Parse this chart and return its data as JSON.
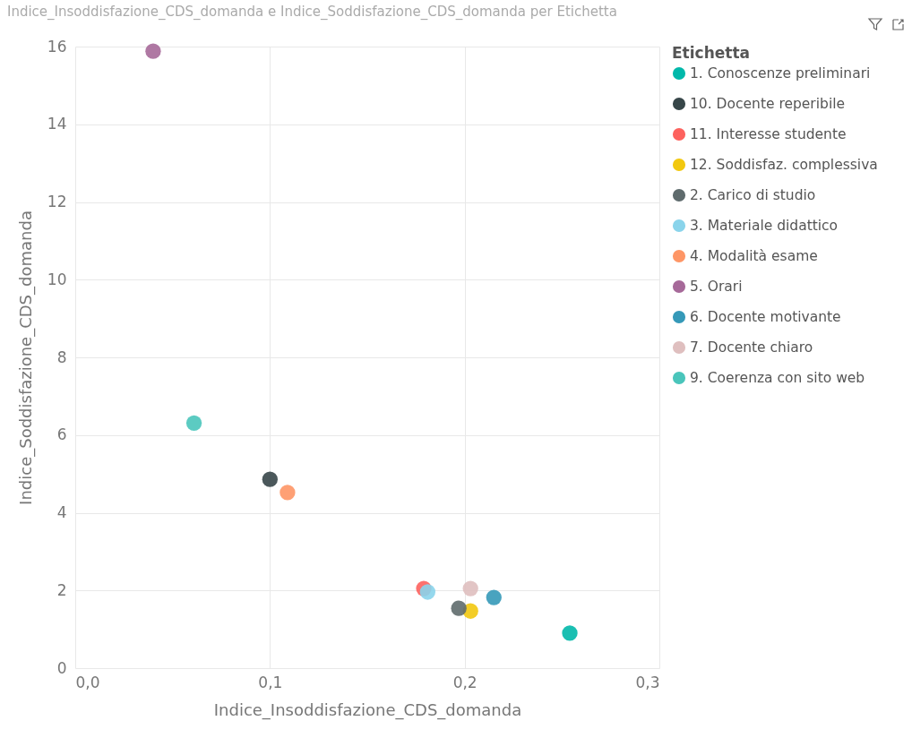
{
  "chart_data": {
    "type": "scatter",
    "title": "Indice_Insoddisfazione_CDS_domanda e Indice_Soddisfazione_CDS_domanda per Etichetta",
    "xlabel": "Indice_Insoddisfazione_CDS_domanda",
    "ylabel": "Indice_Soddisfazione_CDS_domanda",
    "legend_title": "Etichetta",
    "legend": "right",
    "grid": true,
    "marker": "circle",
    "xlim": [
      0,
      0.3
    ],
    "xticks": [
      {
        "value": 0,
        "label": "0,0"
      },
      {
        "value": 0.1,
        "label": "0,1"
      },
      {
        "value": 0.2,
        "label": "0,2"
      },
      {
        "value": 0.3,
        "label": "0,3"
      }
    ],
    "ylim": [
      0,
      16
    ],
    "yticks": [
      0,
      2,
      4,
      6,
      8,
      10,
      12,
      14,
      16
    ],
    "series": [
      {
        "name": "1. Conoscenze preliminari",
        "color": "#01b8aa",
        "x": [
          0.254
        ],
        "values": [
          0.9
        ]
      },
      {
        "name": "10. Docente reperibile",
        "color": "#374649",
        "x": [
          0.1
        ],
        "values": [
          4.86
        ]
      },
      {
        "name": "11. Interesse studente",
        "color": "#fd625e",
        "x": [
          0.179
        ],
        "values": [
          2.05
        ]
      },
      {
        "name": "12. Soddisfaz. complessiva",
        "color": "#f2c80f",
        "x": [
          0.203
        ],
        "values": [
          1.47
        ]
      },
      {
        "name": "2. Carico di studio",
        "color": "#5f6b6d",
        "x": [
          0.197
        ],
        "values": [
          1.54
        ]
      },
      {
        "name": "3. Materiale didattico",
        "color": "#8ad4eb",
        "x": [
          0.181
        ],
        "values": [
          1.96
        ]
      },
      {
        "name": "4. Modalità esame",
        "color": "#fe9666",
        "x": [
          0.109
        ],
        "values": [
          4.52
        ]
      },
      {
        "name": "5. Orari",
        "color": "#a66999",
        "x": [
          0.04
        ],
        "values": [
          15.88
        ]
      },
      {
        "name": "6. Docente motivante",
        "color": "#3599b8",
        "x": [
          0.215
        ],
        "values": [
          1.82
        ]
      },
      {
        "name": "7. Docente chiaro",
        "color": "#dfbfbf",
        "x": [
          0.203
        ],
        "values": [
          2.05
        ]
      },
      {
        "name": "9. Coerenza con sito web",
        "color": "#4ac5bb",
        "x": [
          0.061
        ],
        "values": [
          6.31
        ]
      }
    ]
  }
}
